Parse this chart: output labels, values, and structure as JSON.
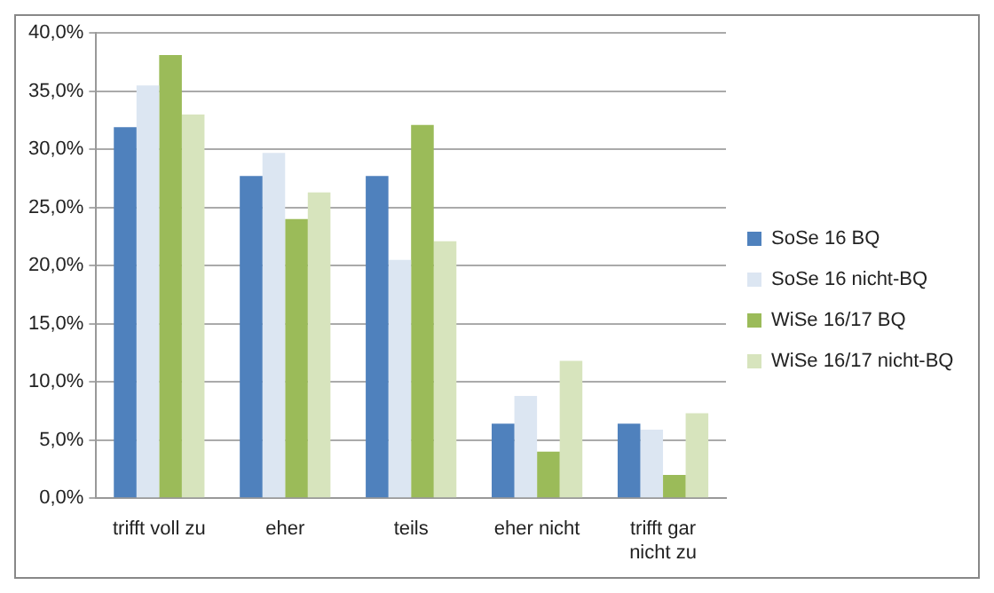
{
  "chart_data": {
    "type": "bar",
    "categories": [
      "trifft voll zu",
      "eher",
      "teils",
      "eher nicht",
      "trifft gar nicht zu"
    ],
    "series": [
      {
        "name": "SoSe 16 BQ",
        "color": "#4f81bd",
        "values": [
          31.9,
          27.7,
          27.7,
          6.4,
          6.4
        ]
      },
      {
        "name": "SoSe 16 nicht-BQ",
        "color": "#dce6f2",
        "values": [
          35.5,
          29.7,
          20.5,
          8.8,
          5.9
        ]
      },
      {
        "name": "WiSe 16/17 BQ",
        "color": "#9bbb59",
        "values": [
          38.1,
          24.0,
          32.1,
          4.0,
          2.0
        ]
      },
      {
        "name": "WiSe 16/17 nicht-BQ",
        "color": "#d7e4bd",
        "values": [
          33.0,
          26.3,
          22.1,
          11.8,
          7.3
        ]
      }
    ],
    "ylim": [
      0,
      40
    ],
    "yticks": [
      {
        "value": 0,
        "label": "0,0%"
      },
      {
        "value": 5,
        "label": "5,0%"
      },
      {
        "value": 10,
        "label": "10,0%"
      },
      {
        "value": 15,
        "label": "15,0%"
      },
      {
        "value": 20,
        "label": "20,0%"
      },
      {
        "value": 25,
        "label": "25,0%"
      },
      {
        "value": 30,
        "label": "30,0%"
      },
      {
        "value": 35,
        "label": "35,0%"
      },
      {
        "value": 40,
        "label": "40,0%"
      }
    ],
    "grid": "y",
    "legend": "right"
  }
}
